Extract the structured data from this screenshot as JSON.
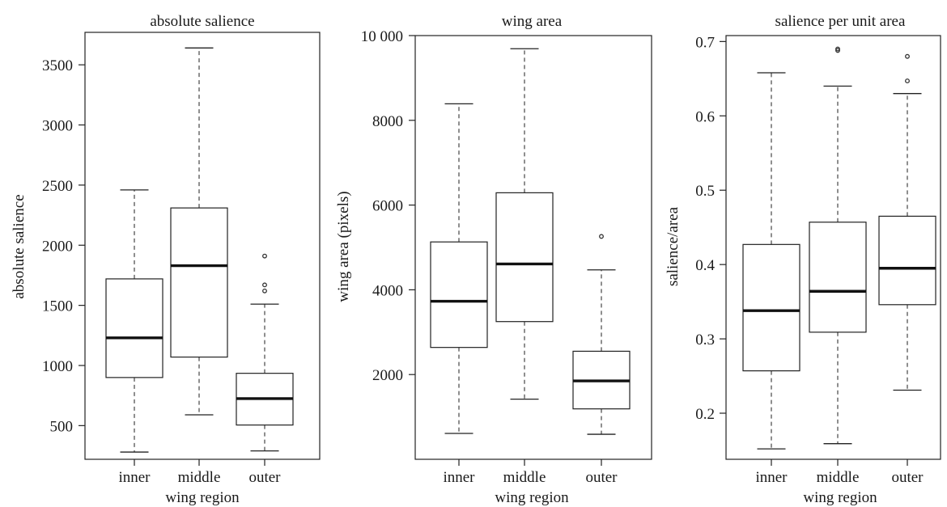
{
  "chart_data": [
    {
      "type": "box",
      "title": "absolute salience",
      "xlabel": "wing region",
      "ylabel": "absolute salience",
      "categories": [
        "inner",
        "middle",
        "outer"
      ],
      "ylim": [
        220,
        3770
      ],
      "yticks": [
        500,
        1000,
        1500,
        2000,
        2500,
        3000,
        3500
      ],
      "tick_labels": [
        "500",
        "1000",
        "1500",
        "2000",
        "2500",
        "3000",
        "3500"
      ],
      "boxes": [
        {
          "category": "inner",
          "whisker_low": 280,
          "q1": 900,
          "median": 1230,
          "q3": 1720,
          "whisker_high": 2460,
          "outliers": []
        },
        {
          "category": "middle",
          "whisker_low": 590,
          "q1": 1070,
          "median": 1830,
          "q3": 2310,
          "whisker_high": 3640,
          "outliers": []
        },
        {
          "category": "outer",
          "whisker_low": 290,
          "q1": 505,
          "median": 725,
          "q3": 935,
          "whisker_high": 1510,
          "outliers": [
            1620,
            1670,
            1910
          ]
        }
      ]
    },
    {
      "type": "box",
      "title": "wing area",
      "xlabel": "wing region",
      "ylabel": "wing area (pixels)",
      "categories": [
        "inner",
        "middle",
        "outer"
      ],
      "ylim": [
        0,
        10000
      ],
      "yticks": [
        2000,
        4000,
        6000,
        8000,
        10000
      ],
      "tick_labels": [
        "2000",
        "4000",
        "6000",
        "8000",
        "10 000"
      ],
      "boxes": [
        {
          "category": "inner",
          "whisker_low": 610,
          "q1": 2640,
          "median": 3730,
          "q3": 5130,
          "whisker_high": 8390,
          "outliers": []
        },
        {
          "category": "middle",
          "whisker_low": 1420,
          "q1": 3250,
          "median": 4610,
          "q3": 6290,
          "whisker_high": 9690,
          "outliers": []
        },
        {
          "category": "outer",
          "whisker_low": 590,
          "q1": 1190,
          "median": 1850,
          "q3": 2550,
          "whisker_high": 4470,
          "outliers": [
            5260
          ]
        }
      ]
    },
    {
      "type": "box",
      "title": "salience per unit area",
      "xlabel": "wing region",
      "ylabel": "salience/area",
      "categories": [
        "inner",
        "middle",
        "outer"
      ],
      "ylim": [
        0.138,
        0.708
      ],
      "yticks": [
        0.2,
        0.3,
        0.4,
        0.5,
        0.6,
        0.7
      ],
      "tick_labels": [
        "0.2",
        "0.3",
        "0.4",
        "0.5",
        "0.6",
        "0.7"
      ],
      "boxes": [
        {
          "category": "inner",
          "whisker_low": 0.152,
          "q1": 0.257,
          "median": 0.338,
          "q3": 0.427,
          "whisker_high": 0.658,
          "outliers": []
        },
        {
          "category": "middle",
          "whisker_low": 0.159,
          "q1": 0.309,
          "median": 0.364,
          "q3": 0.457,
          "whisker_high": 0.64,
          "outliers": [
            0.688,
            0.69
          ]
        },
        {
          "category": "outer",
          "whisker_low": 0.231,
          "q1": 0.346,
          "median": 0.395,
          "q3": 0.465,
          "whisker_high": 0.63,
          "outliers": [
            0.647,
            0.68
          ]
        }
      ]
    }
  ]
}
